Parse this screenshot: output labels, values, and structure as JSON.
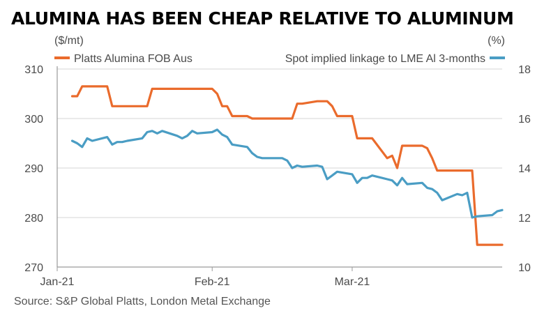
{
  "chart_data": {
    "type": "line",
    "title": "ALUMINA HAS BEEN CHEAP RELATIVE TO ALUMINUM",
    "left_axis_unit": "($/mt)",
    "right_axis_unit": "(%)",
    "left_ylim": [
      270,
      310
    ],
    "left_ticks": [
      "310",
      "300",
      "290",
      "280",
      "270"
    ],
    "left_tick_values": [
      310,
      300,
      290,
      280,
      270
    ],
    "right_ylim": [
      10,
      18
    ],
    "right_ticks": [
      "18",
      "16",
      "14",
      "12",
      "10"
    ],
    "right_tick_values": [
      18,
      16,
      14,
      12,
      10
    ],
    "x_ticks": [
      "Jan-21",
      "Feb-21",
      "Mar-21"
    ],
    "x_tick_dates": [
      "2021-01-01",
      "2021-02-01",
      "2021-03-01"
    ],
    "grid": true,
    "legend_position": "top",
    "series": [
      {
        "name": "Platts Alumina FOB Aus",
        "axis": "left",
        "color": "#ea6b2c",
        "x": [
          "2021-01-04",
          "2021-01-05",
          "2021-01-06",
          "2021-01-07",
          "2021-01-08",
          "2021-01-11",
          "2021-01-12",
          "2021-01-13",
          "2021-01-14",
          "2021-01-15",
          "2021-01-18",
          "2021-01-19",
          "2021-01-20",
          "2021-01-21",
          "2021-01-22",
          "2021-01-25",
          "2021-01-26",
          "2021-01-27",
          "2021-01-28",
          "2021-01-29",
          "2021-02-01",
          "2021-02-02",
          "2021-02-03",
          "2021-02-04",
          "2021-02-05",
          "2021-02-08",
          "2021-02-09",
          "2021-02-10",
          "2021-02-11",
          "2021-02-12",
          "2021-02-15",
          "2021-02-16",
          "2021-02-17",
          "2021-02-18",
          "2021-02-19",
          "2021-02-22",
          "2021-02-23",
          "2021-02-24",
          "2021-02-25",
          "2021-02-26",
          "2021-03-01",
          "2021-03-02",
          "2021-03-03",
          "2021-03-04",
          "2021-03-05",
          "2021-03-08",
          "2021-03-09",
          "2021-03-10",
          "2021-03-11",
          "2021-03-12",
          "2021-03-15",
          "2021-03-16",
          "2021-03-17",
          "2021-03-18",
          "2021-03-19",
          "2021-03-22",
          "2021-03-23",
          "2021-03-24",
          "2021-03-25",
          "2021-03-26",
          "2021-03-29",
          "2021-03-30",
          "2021-03-31"
        ],
        "values": [
          304.5,
          304.5,
          306.5,
          306.5,
          306.5,
          306.5,
          302.5,
          302.5,
          302.5,
          302.5,
          302.5,
          302.5,
          306.0,
          306.0,
          306.0,
          306.0,
          306.0,
          306.0,
          306.0,
          306.0,
          306.0,
          305.0,
          302.5,
          302.5,
          300.5,
          300.5,
          300.0,
          300.0,
          300.0,
          300.0,
          300.0,
          300.0,
          300.0,
          303.0,
          303.0,
          303.5,
          303.5,
          303.5,
          302.5,
          300.5,
          300.5,
          296.0,
          296.0,
          296.0,
          296.0,
          292.0,
          292.5,
          290.0,
          294.5,
          294.5,
          294.5,
          294.0,
          292.0,
          289.5,
          289.5,
          289.5,
          289.5,
          289.5,
          289.5,
          274.5,
          274.5,
          274.5,
          274.5
        ]
      },
      {
        "name": "Spot implied linkage to LME Al 3-months",
        "axis": "right",
        "color": "#4a9dc4",
        "x": [
          "2021-01-04",
          "2021-01-05",
          "2021-01-06",
          "2021-01-07",
          "2021-01-08",
          "2021-01-11",
          "2021-01-12",
          "2021-01-13",
          "2021-01-14",
          "2021-01-15",
          "2021-01-18",
          "2021-01-19",
          "2021-01-20",
          "2021-01-21",
          "2021-01-22",
          "2021-01-25",
          "2021-01-26",
          "2021-01-27",
          "2021-01-28",
          "2021-01-29",
          "2021-02-01",
          "2021-02-02",
          "2021-02-03",
          "2021-02-04",
          "2021-02-05",
          "2021-02-08",
          "2021-02-09",
          "2021-02-10",
          "2021-02-11",
          "2021-02-12",
          "2021-02-15",
          "2021-02-16",
          "2021-02-17",
          "2021-02-18",
          "2021-02-19",
          "2021-02-22",
          "2021-02-23",
          "2021-02-24",
          "2021-02-25",
          "2021-02-26",
          "2021-03-01",
          "2021-03-02",
          "2021-03-03",
          "2021-03-04",
          "2021-03-05",
          "2021-03-08",
          "2021-03-09",
          "2021-03-10",
          "2021-03-11",
          "2021-03-12",
          "2021-03-15",
          "2021-03-16",
          "2021-03-17",
          "2021-03-18",
          "2021-03-19",
          "2021-03-22",
          "2021-03-23",
          "2021-03-24",
          "2021-03-25",
          "2021-03-26",
          "2021-03-29",
          "2021-03-30",
          "2021-03-31"
        ],
        "values": [
          15.1,
          15.0,
          14.85,
          15.2,
          15.1,
          15.25,
          14.95,
          15.05,
          15.05,
          15.1,
          15.2,
          15.45,
          15.5,
          15.4,
          15.5,
          15.3,
          15.2,
          15.3,
          15.5,
          15.4,
          15.45,
          15.55,
          15.35,
          15.25,
          14.95,
          14.85,
          14.6,
          14.45,
          14.4,
          14.4,
          14.4,
          14.3,
          14.0,
          14.1,
          14.05,
          14.1,
          14.05,
          13.55,
          13.7,
          13.85,
          13.75,
          13.4,
          13.6,
          13.6,
          13.7,
          13.55,
          13.5,
          13.3,
          13.6,
          13.35,
          13.4,
          13.2,
          13.15,
          13.0,
          12.7,
          12.95,
          12.9,
          13.0,
          12.0,
          12.05,
          12.1,
          12.25,
          12.3
        ]
      }
    ]
  },
  "source": "Source: S&P Global Platts, London Metal Exchange"
}
